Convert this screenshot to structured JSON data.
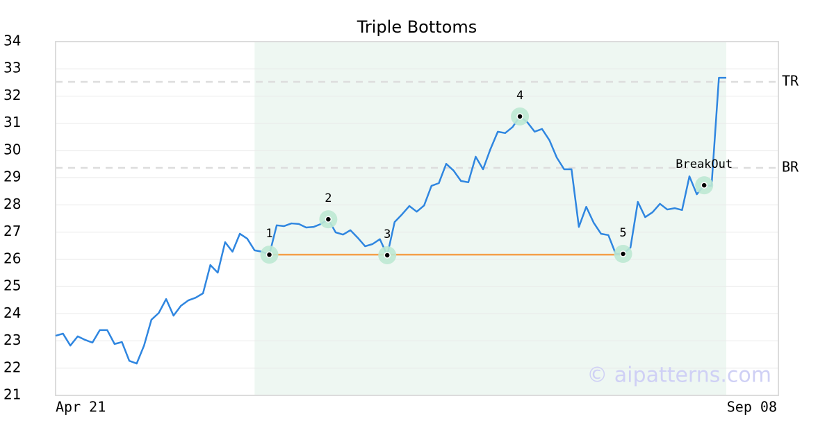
{
  "chart_data": {
    "type": "line",
    "title": "Triple Bottoms",
    "categories": [
      "Apr 21",
      null,
      null,
      null,
      null,
      null,
      null,
      null,
      null,
      null,
      null,
      null,
      null,
      null,
      null,
      null,
      null,
      null,
      null,
      null,
      null,
      null,
      null,
      null,
      null,
      null,
      null,
      null,
      null,
      null,
      null,
      null,
      null,
      null,
      null,
      null,
      null,
      null,
      null,
      null,
      null,
      null,
      null,
      null,
      null,
      null,
      null,
      null,
      null,
      null,
      null,
      null,
      null,
      null,
      null,
      null,
      null,
      null,
      null,
      null,
      null,
      null,
      null,
      null,
      null,
      null,
      null,
      null,
      null,
      null,
      null,
      null,
      null,
      null,
      null,
      null,
      null,
      null,
      null,
      null,
      null,
      null,
      null,
      null,
      null,
      null,
      null,
      null,
      null,
      null,
      null,
      "Sep 08"
    ],
    "series": [
      {
        "color": "#2f86e0",
        "values": [
          23.19,
          23.27,
          22.83,
          23.17,
          23.04,
          22.94,
          23.4,
          23.4,
          22.89,
          22.96,
          22.27,
          22.17,
          22.83,
          23.78,
          24.03,
          24.54,
          23.93,
          24.29,
          24.49,
          24.59,
          24.75,
          25.79,
          25.51,
          26.63,
          26.28,
          26.94,
          26.76,
          26.33,
          26.28,
          26.17,
          27.25,
          27.22,
          27.32,
          27.3,
          27.17,
          27.19,
          27.3,
          27.47,
          26.99,
          26.91,
          27.07,
          26.79,
          26.48,
          26.56,
          26.74,
          26.15,
          27.37,
          27.65,
          27.96,
          27.75,
          27.98,
          28.7,
          28.8,
          29.51,
          29.26,
          28.88,
          28.83,
          29.77,
          29.31,
          30.05,
          30.69,
          30.64,
          30.86,
          31.25,
          31.04,
          30.69,
          30.79,
          30.38,
          29.74,
          29.31,
          29.31,
          27.19,
          27.93,
          27.35,
          26.94,
          26.89,
          26.2,
          26.2,
          26.43,
          28.11,
          27.55,
          27.73,
          28.04,
          27.83,
          27.88,
          27.81,
          29.05,
          28.39,
          28.72,
          28.7,
          32.67,
          32.67
        ]
      }
    ],
    "ylim": [
      21,
      34
    ],
    "yticks": [
      21,
      22,
      23,
      24,
      25,
      26,
      27,
      28,
      29,
      30,
      31,
      32,
      33,
      34
    ],
    "grid": true,
    "highlight": {
      "from": 27,
      "to": 91,
      "color": "#eef7f2"
    },
    "levels": [
      {
        "label": "TR",
        "value": 32.52
      },
      {
        "label": "BR",
        "value": 29.36
      }
    ],
    "support": {
      "from": 29,
      "to": 77,
      "value": 26.17,
      "color": "#f4a04a"
    },
    "annotations": [
      {
        "text": "1",
        "x": 29,
        "y": 26.17
      },
      {
        "text": "2",
        "x": 37,
        "y": 27.47
      },
      {
        "text": "3",
        "x": 45,
        "y": 26.15
      },
      {
        "text": "4",
        "x": 63,
        "y": 31.25
      },
      {
        "text": "5",
        "x": 77,
        "y": 26.2
      },
      {
        "text": "BreakOut",
        "x": 88,
        "y": 28.72
      }
    ],
    "watermark": "© aipatterns.com"
  }
}
